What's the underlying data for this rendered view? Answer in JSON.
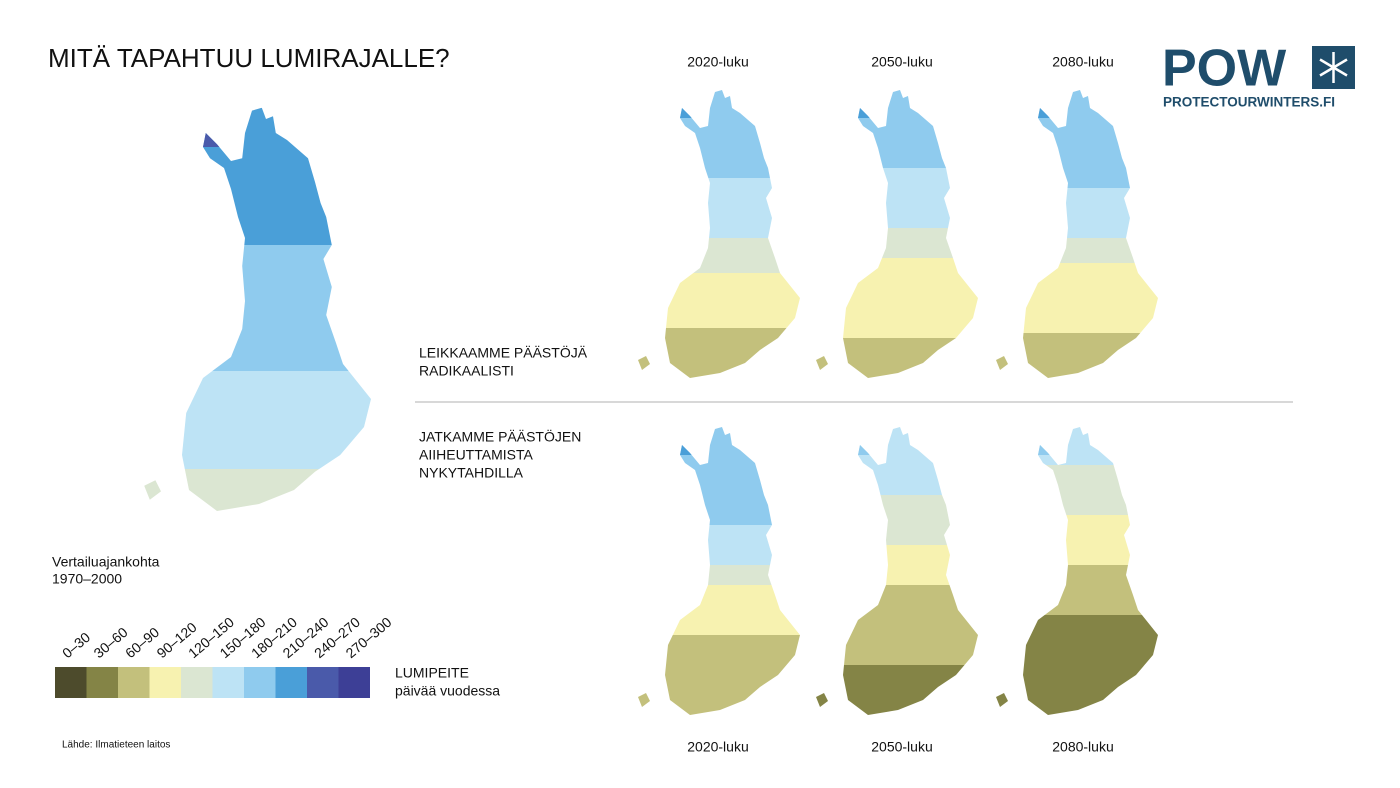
{
  "title": "MITÄ TAPAHTUU LUMIRAJALLE?",
  "logo": {
    "mark": "POW",
    "url": "PROTECTOURWINTERS.FI"
  },
  "baseline": {
    "label": "Vertailuajankohta",
    "period": "1970–2000"
  },
  "columns_top": [
    "2020-luku",
    "2050-luku",
    "2080-luku"
  ],
  "columns_bottom": [
    "2020-luku",
    "2050-luku",
    "2080-luku"
  ],
  "scenarios": [
    {
      "lines": [
        "LEIKKAAMME PÄÄSTÖJÄ",
        "RADIKAALISTI"
      ]
    },
    {
      "lines": [
        "JATKAMME PÄÄSTÖJEN",
        "AIIHEUTTAMISTA",
        "NYKYTAHDILLA"
      ]
    }
  ],
  "legend": {
    "title": "LUMIPEITE",
    "subtitle": "päivää vuodessa",
    "bins": [
      {
        "label": "0–30",
        "color": "#4d4b2c"
      },
      {
        "label": "30–60",
        "color": "#848446"
      },
      {
        "label": "60–90",
        "color": "#c3c07c"
      },
      {
        "label": "90–120",
        "color": "#f7f2b0"
      },
      {
        "label": "120–150",
        "color": "#dbe6d2"
      },
      {
        "label": "150–180",
        "color": "#bde3f5"
      },
      {
        "label": "180–210",
        "color": "#8fcbee"
      },
      {
        "label": "210–240",
        "color": "#4a9fd8"
      },
      {
        "label": "240–270",
        "color": "#4a5aaa"
      },
      {
        "label": "270–300",
        "color": "#3d3f96"
      }
    ]
  },
  "source": "Lähde: Ilmatieteen laitos"
}
